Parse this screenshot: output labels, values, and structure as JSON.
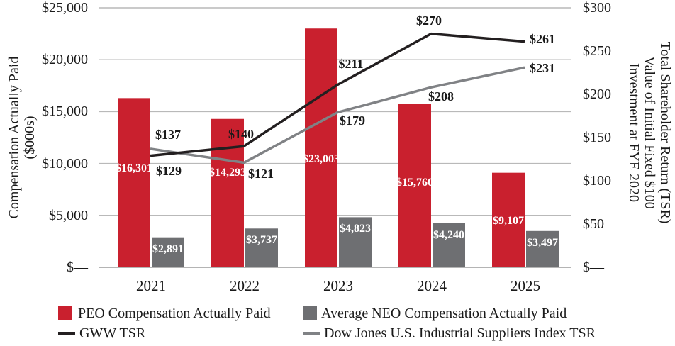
{
  "chart_data": {
    "type": "bar",
    "subtype": "combo-bar-line-dual-axis",
    "categories": [
      "2021",
      "2022",
      "2023",
      "2024",
      "2025"
    ],
    "series": [
      {
        "name": "PEO Compensation Actually Paid",
        "type": "bar",
        "axis": "left",
        "color": "#C9202E",
        "values": [
          16301,
          14293,
          23003,
          15760,
          9107
        ],
        "labels": [
          "$16,301",
          "$14,293",
          "$23,003",
          "$15,760",
          "$9,107"
        ]
      },
      {
        "name": "Average NEO Compensation Actually Paid",
        "type": "bar",
        "axis": "left",
        "color": "#6E6F72",
        "values": [
          2891,
          3737,
          4823,
          4240,
          3497
        ],
        "labels": [
          "$2,891",
          "$3,737",
          "$4,823",
          "$4,240",
          "$3,497"
        ]
      },
      {
        "name": "GWW TSR",
        "type": "line",
        "axis": "right",
        "color": "#231F20",
        "values": [
          129,
          140,
          211,
          270,
          261
        ],
        "labels": [
          "$129",
          "$140",
          "$211",
          "$270",
          "$261"
        ]
      },
      {
        "name": "Dow Jones U.S. Industrial Suppliers Index TSR",
        "type": "line",
        "axis": "right",
        "color": "#808285",
        "values": [
          137,
          121,
          179,
          208,
          231
        ],
        "labels": [
          "$137",
          "$121",
          "$179",
          "$208",
          "$231"
        ]
      }
    ],
    "left_axis": {
      "title_lines": [
        "Compensation Actually Paid",
        "($000s)"
      ],
      "ticks": [
        "$25,000",
        "$20,000",
        "$15,000",
        "$10,000",
        "$5,000",
        "$—"
      ],
      "range": [
        0,
        25000
      ]
    },
    "right_axis": {
      "title_lines": [
        "Total Shareholder Return (TSR)",
        "Value of Initial Fixed $100",
        "Investment at FYE 2020"
      ],
      "ticks": [
        "$300",
        "$250",
        "$200",
        "$150",
        "$100",
        "$50",
        "$—"
      ],
      "range": [
        0,
        300
      ]
    },
    "grid": "horizontal",
    "legend_position": "bottom",
    "colors": {
      "peo_bar": "#C9202E",
      "neo_bar": "#6E6F72",
      "gww_line": "#231F20",
      "dj_line": "#808285",
      "gridline": "#B9B9B9",
      "baseline": "#9C9C9C",
      "bar_label_text": "#FFFFFF",
      "text": "#1A1A1A"
    }
  }
}
